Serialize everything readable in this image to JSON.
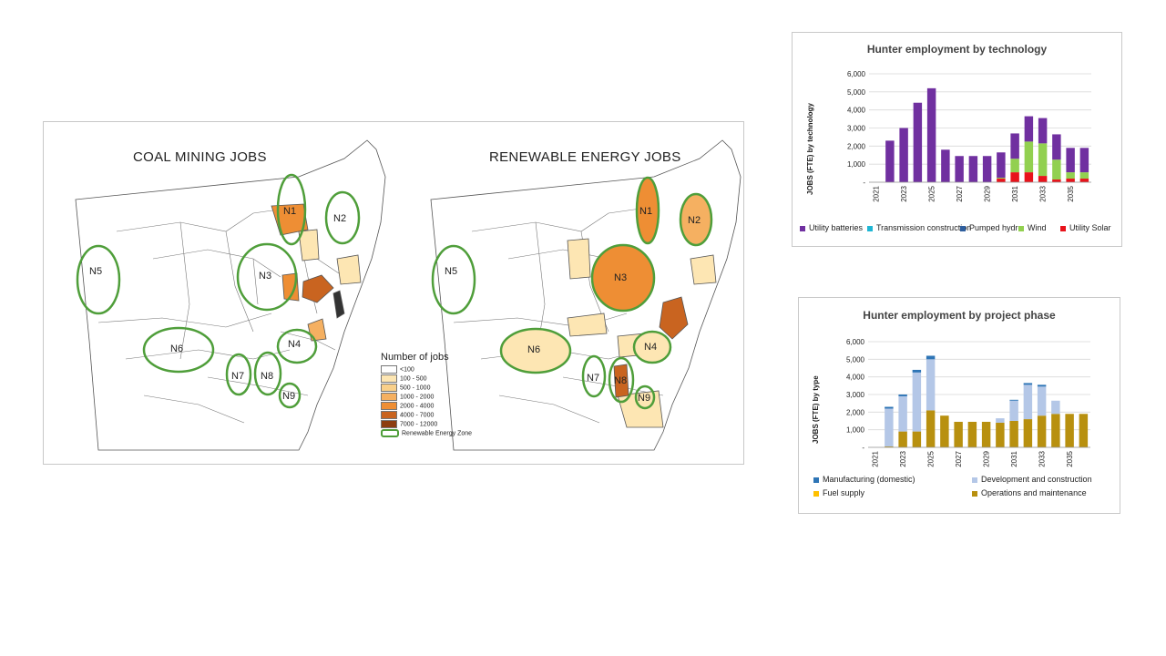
{
  "maps": {
    "coal_title": "COAL MINING JOBS",
    "renewable_title": "RENEWABLE ENERGY JOBS",
    "legend": {
      "title": "Number of jobs",
      "items": [
        {
          "label": "<100",
          "color": "#ffffff"
        },
        {
          "label": "100 - 500",
          "color": "#fde6b3"
        },
        {
          "label": "500 - 1000",
          "color": "#f9d08a"
        },
        {
          "label": "1000 - 2000",
          "color": "#f5b061"
        },
        {
          "label": "2000 - 4000",
          "color": "#ee8e34"
        },
        {
          "label": "4000 - 7000",
          "color": "#c96420"
        },
        {
          "label": "7000 - 12000",
          "color": "#8c3d10"
        },
        {
          "label": "Renewable Energy Zone",
          "color": "#4f9e3a"
        }
      ]
    },
    "zones_coal": [
      "N1",
      "N2",
      "N3",
      "N4",
      "N5",
      "N6",
      "N7",
      "N8",
      "N9"
    ],
    "zones_renewable": [
      "N1",
      "N2",
      "N3",
      "N4",
      "N5",
      "N6",
      "N7",
      "N8",
      "N9"
    ]
  },
  "chart_data": [
    {
      "type": "bar",
      "stacked": true,
      "title": "Hunter employment by technology",
      "ylabel": "JOBS (FTE) by technology",
      "xlabel": "",
      "ylim": [
        0,
        6000
      ],
      "yticks": [
        "-",
        "1,000",
        "2,000",
        "3,000",
        "4,000",
        "5,000",
        "6,000"
      ],
      "xtick_labels": [
        "2021",
        "2023",
        "2025",
        "2027",
        "2029",
        "2031",
        "2033",
        "2035"
      ],
      "categories": [
        "2021",
        "2022",
        "2023",
        "2024",
        "2025",
        "2026",
        "2027",
        "2028",
        "2029",
        "2030",
        "2031",
        "2032",
        "2033",
        "2034",
        "2035",
        "2036"
      ],
      "series": [
        {
          "name": "Utility Solar",
          "color": "#e8131b",
          "values": [
            0,
            0,
            0,
            0,
            0,
            0,
            0,
            0,
            0,
            200,
            550,
            550,
            350,
            150,
            200,
            200
          ]
        },
        {
          "name": "Wind",
          "color": "#92d050",
          "values": [
            0,
            0,
            0,
            0,
            0,
            0,
            0,
            0,
            0,
            50,
            750,
            1700,
            1800,
            1100,
            350,
            350
          ]
        },
        {
          "name": "Pumped hydro",
          "color": "#2e5e9e",
          "values": [
            0,
            0,
            0,
            0,
            0,
            0,
            0,
            0,
            0,
            0,
            0,
            0,
            0,
            0,
            0,
            0
          ]
        },
        {
          "name": "Transmission construction",
          "color": "#1fb6d4",
          "values": [
            0,
            0,
            0,
            0,
            0,
            0,
            0,
            0,
            0,
            0,
            0,
            0,
            0,
            0,
            0,
            0
          ]
        },
        {
          "name": "Utility batteries",
          "color": "#7030a0",
          "values": [
            0,
            2300,
            3000,
            4400,
            5200,
            1800,
            1450,
            1450,
            1450,
            1400,
            1400,
            1400,
            1400,
            1400,
            1350,
            1350
          ]
        }
      ],
      "legend_order": [
        "Utility batteries",
        "Transmission construction",
        "Pumped hydro",
        "Wind",
        "Utility Solar"
      ]
    },
    {
      "type": "bar",
      "stacked": true,
      "title": "Hunter employment by project phase",
      "ylabel": "JOBS (FTE) by type",
      "xlabel": "",
      "ylim": [
        0,
        6000
      ],
      "yticks": [
        "-",
        "1,000",
        "2,000",
        "3,000",
        "4,000",
        "5,000",
        "6,000"
      ],
      "xtick_labels": [
        "2021",
        "2023",
        "2025",
        "2027",
        "2029",
        "2031",
        "2033",
        "2035"
      ],
      "categories": [
        "2021",
        "2022",
        "2023",
        "2024",
        "2025",
        "2026",
        "2027",
        "2028",
        "2029",
        "2030",
        "2031",
        "2032",
        "2033",
        "2034",
        "2035",
        "2036"
      ],
      "series": [
        {
          "name": "Operations and maintenance",
          "color": "#b8900f",
          "values": [
            0,
            50,
            900,
            900,
            2100,
            1800,
            1450,
            1450,
            1450,
            1400,
            1500,
            1600,
            1800,
            1900,
            1900,
            1900
          ]
        },
        {
          "name": "Fuel supply",
          "color": "#ffc000",
          "values": [
            0,
            0,
            0,
            0,
            0,
            0,
            0,
            0,
            0,
            0,
            0,
            0,
            0,
            0,
            0,
            0
          ]
        },
        {
          "name": "Development and construction",
          "color": "#b4c7e7",
          "values": [
            0,
            2150,
            2000,
            3350,
            2900,
            0,
            0,
            0,
            0,
            250,
            1150,
            1950,
            1650,
            750,
            0,
            0
          ]
        },
        {
          "name": "Manufacturing (domestic)",
          "color": "#2e75b6",
          "values": [
            0,
            100,
            100,
            150,
            200,
            0,
            0,
            0,
            0,
            0,
            50,
            100,
            100,
            0,
            0,
            0
          ]
        }
      ],
      "legend_order": [
        "Manufacturing (domestic)",
        "Development and construction",
        "Fuel supply",
        "Operations and maintenance"
      ]
    }
  ]
}
